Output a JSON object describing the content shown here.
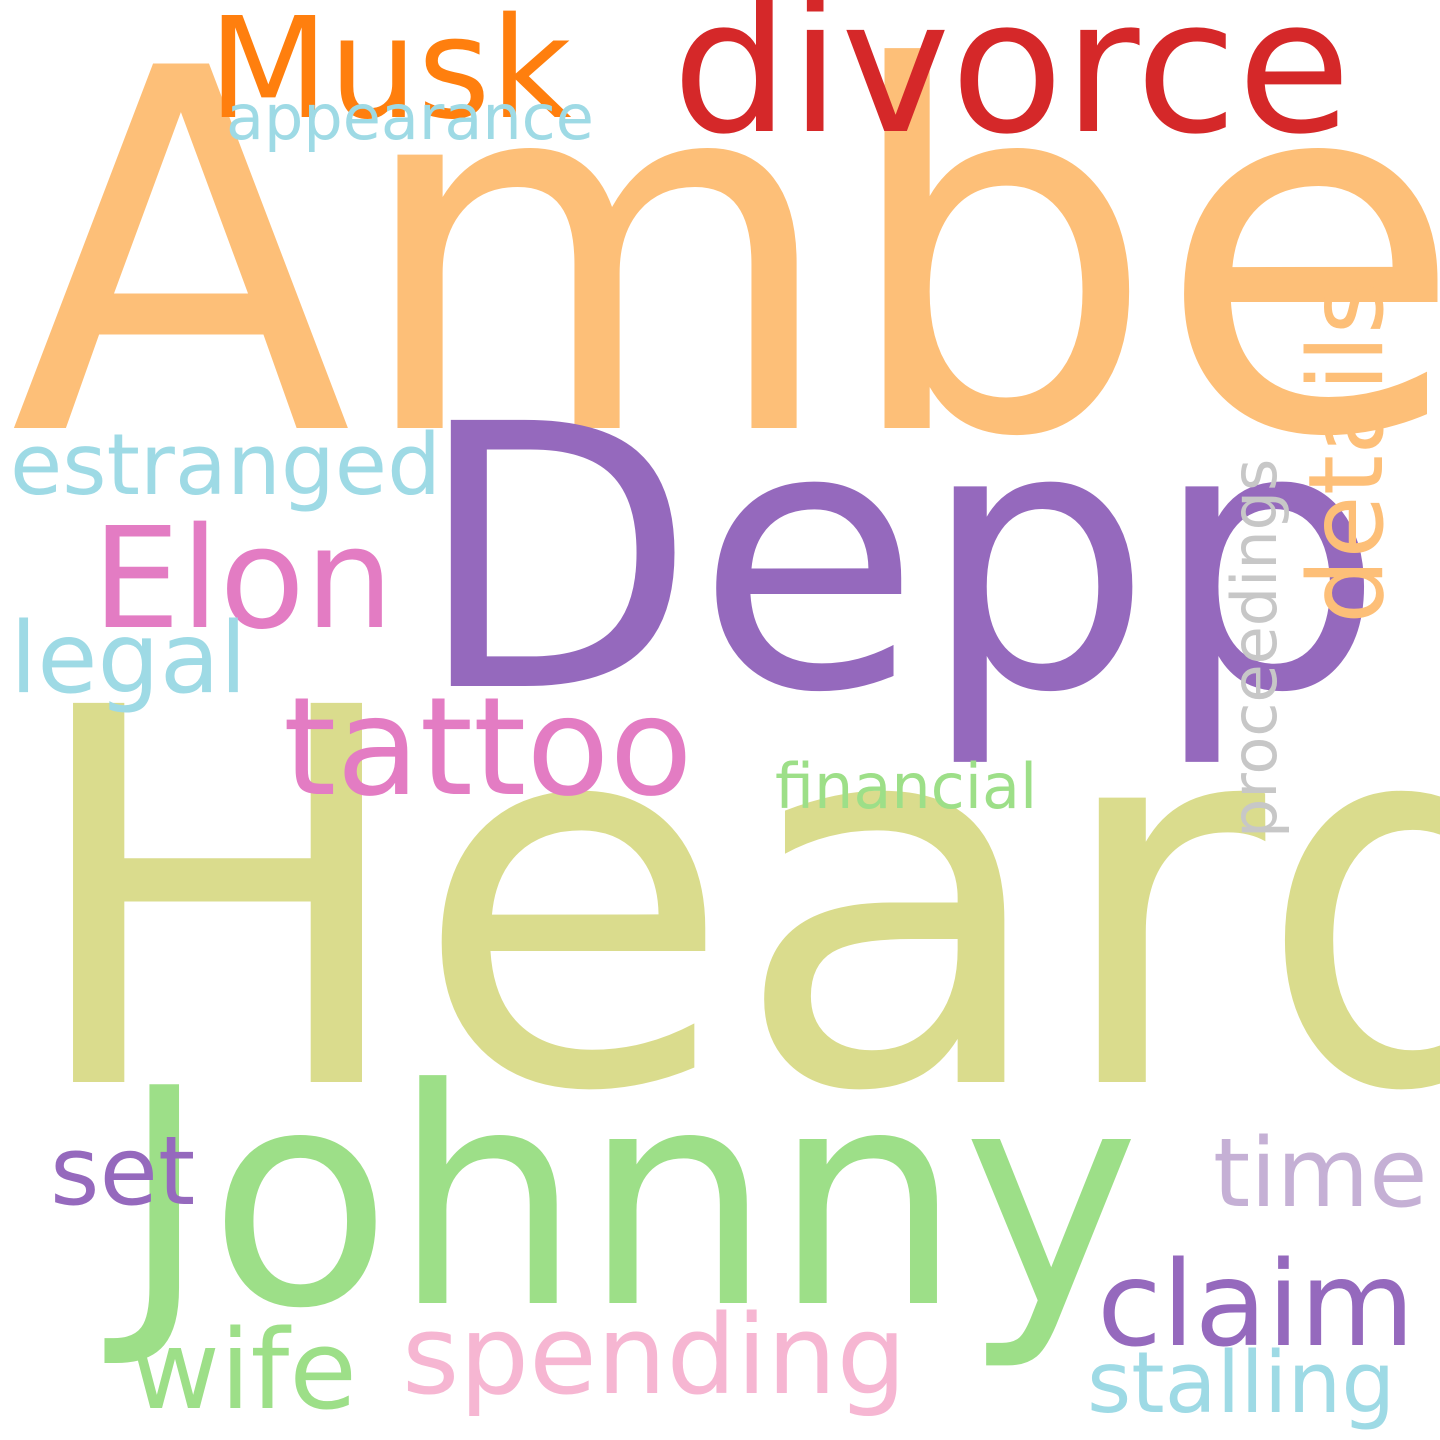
{
  "words": [
    {
      "key": "amber",
      "text": "Amber",
      "color": "#fdbf78"
    },
    {
      "key": "heard",
      "text": "Heard",
      "color": "#dadc8d"
    },
    {
      "key": "depp",
      "text": "Depp",
      "color": "#9569bd"
    },
    {
      "key": "johnny",
      "text": "Johnny",
      "color": "#9ddf88"
    },
    {
      "key": "divorce",
      "text": "divorce",
      "color": "#d52829"
    },
    {
      "key": "musk",
      "text": "Musk",
      "color": "#ff7f0e"
    },
    {
      "key": "elon",
      "text": "Elon",
      "color": "#e37cc3"
    },
    {
      "key": "tattoo",
      "text": "tattoo",
      "color": "#e37cc3"
    },
    {
      "key": "claim",
      "text": "claim",
      "color": "#9569bd"
    },
    {
      "key": "spending",
      "text": "spending",
      "color": "#f6b6d2"
    },
    {
      "key": "wife",
      "text": "wife",
      "color": "#9ddf88"
    },
    {
      "key": "time",
      "text": "time",
      "color": "#c5b0d5"
    },
    {
      "key": "details",
      "text": "details",
      "color": "#fdbf78"
    },
    {
      "key": "estranged",
      "text": "estranged",
      "color": "#9edae5"
    },
    {
      "key": "legal",
      "text": "legal",
      "color": "#9edae5"
    },
    {
      "key": "set",
      "text": "set",
      "color": "#9569bd"
    },
    {
      "key": "stalling",
      "text": "stalling",
      "color": "#9edae5"
    },
    {
      "key": "appearance",
      "text": "appearance",
      "color": "#9edae5"
    },
    {
      "key": "financial",
      "text": "financial",
      "color": "#9ddf88"
    },
    {
      "key": "proceedings",
      "text": "proceedings",
      "color": "#c7c7c7"
    }
  ]
}
